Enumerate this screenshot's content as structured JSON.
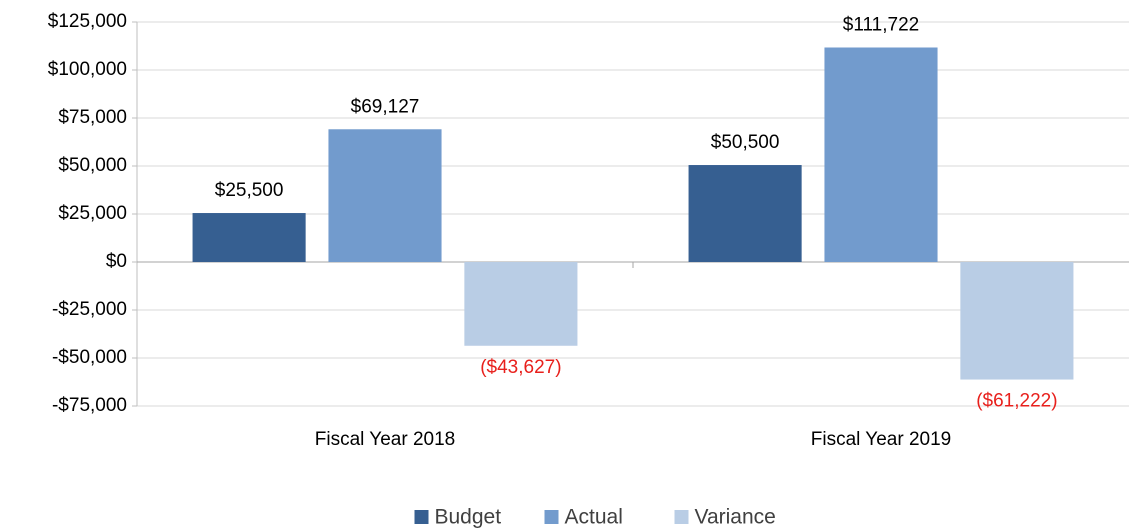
{
  "chart_data": {
    "type": "bar",
    "categories": [
      "Fiscal Year 2018",
      "Fiscal Year 2019"
    ],
    "series": [
      {
        "name": "Budget",
        "color": "#365f91",
        "label_color": "#000000",
        "values": [
          25500,
          50500
        ],
        "value_labels": [
          "$25,500",
          "$50,500"
        ]
      },
      {
        "name": "Actual",
        "color": "#729bcd",
        "label_color": "#000000",
        "values": [
          69127,
          111722
        ],
        "value_labels": [
          "$69,127",
          "$111,722"
        ]
      },
      {
        "name": "Variance",
        "color": "#b9cde5",
        "label_color": "#e8201c",
        "values": [
          -43627,
          -61222
        ],
        "value_labels": [
          "($43,627)",
          "($61,222)"
        ]
      }
    ],
    "ylim": [
      -75000,
      125000
    ],
    "yticks": [
      {
        "value": -75000,
        "label": "-$75,000"
      },
      {
        "value": -50000,
        "label": "-$50,000"
      },
      {
        "value": -25000,
        "label": "-$25,000"
      },
      {
        "value": 0,
        "label": "$0"
      },
      {
        "value": 25000,
        "label": "$25,000"
      },
      {
        "value": 50000,
        "label": "$50,000"
      },
      {
        "value": 75000,
        "label": "$75,000"
      },
      {
        "value": 100000,
        "label": "$100,000"
      },
      {
        "value": 125000,
        "label": "$125,000"
      }
    ],
    "grid": true,
    "legend": "bottom"
  }
}
